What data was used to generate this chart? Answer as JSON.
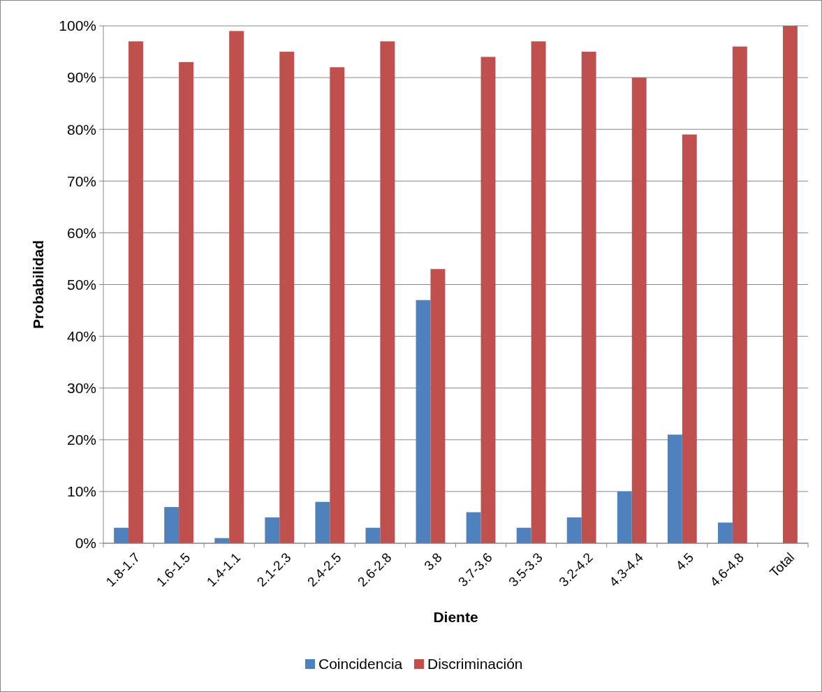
{
  "chart_data": {
    "type": "bar",
    "xlabel": "Diente",
    "ylabel": "Probabilidad",
    "categories": [
      "1.8-1.7",
      "1.6-1.5",
      "1.4-1.1",
      "2.1-2.3",
      "2.4-2.5",
      "2.6-2.8",
      "3.8",
      "3.7-3.6",
      "3.5-3.3",
      "3.2-4.2",
      "4.3-4.4",
      "4.5",
      "4.6-4.8",
      "Total"
    ],
    "series": [
      {
        "name": "Coincidencia",
        "color": "#4f81bd",
        "values": [
          3,
          7,
          1,
          5,
          8,
          3,
          47,
          6,
          3,
          5,
          10,
          21,
          4,
          0
        ]
      },
      {
        "name": "Discriminación",
        "color": "#c0504d",
        "values": [
          97,
          93,
          99,
          95,
          92,
          97,
          53,
          94,
          97,
          95,
          90,
          79,
          96,
          100
        ]
      }
    ],
    "ylim": [
      0,
      100
    ],
    "yticks": [
      {
        "value": 0,
        "label": "0%"
      },
      {
        "value": 10,
        "label": "10%"
      },
      {
        "value": 20,
        "label": "20%"
      },
      {
        "value": 30,
        "label": "30%"
      },
      {
        "value": 40,
        "label": "40%"
      },
      {
        "value": 50,
        "label": "50%"
      },
      {
        "value": 60,
        "label": "60%"
      },
      {
        "value": 70,
        "label": "70%"
      },
      {
        "value": 80,
        "label": "80%"
      },
      {
        "value": 90,
        "label": "90%"
      },
      {
        "value": 100,
        "label": "100%"
      }
    ],
    "grid": "y",
    "legend": "bottom"
  }
}
